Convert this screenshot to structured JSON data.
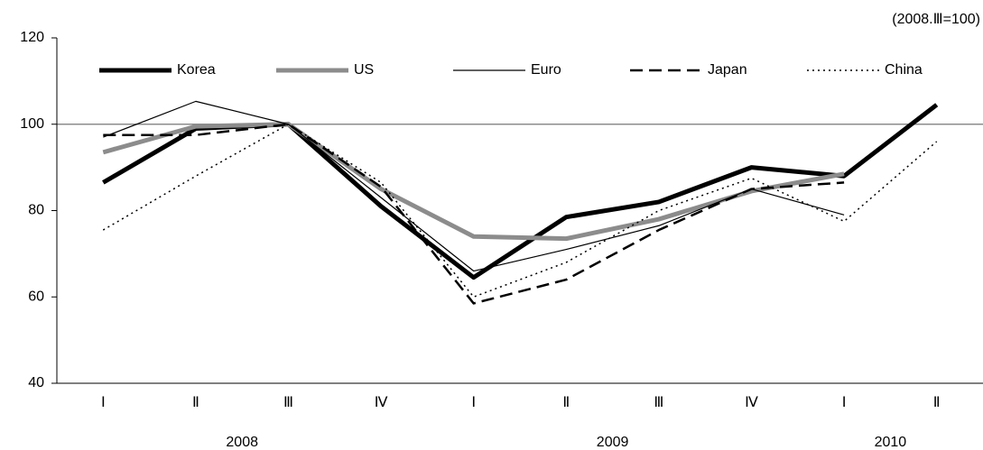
{
  "chart_data": {
    "type": "line",
    "annotation": "(2008.Ⅲ=100)",
    "categories": [
      "Ⅰ",
      "Ⅱ",
      "Ⅲ",
      "Ⅳ",
      "Ⅰ",
      "Ⅱ",
      "Ⅲ",
      "Ⅳ",
      "Ⅰ",
      "Ⅱ"
    ],
    "groups": [
      {
        "label": "2008",
        "count": 4
      },
      {
        "label": "2009",
        "count": 4
      },
      {
        "label": "2010",
        "count": 2
      }
    ],
    "ylim": [
      40,
      120
    ],
    "yticks": [
      40,
      60,
      80,
      100,
      120
    ],
    "reference_line": 100,
    "legend": "top",
    "series": [
      {
        "name": "Korea",
        "color": "#000000",
        "width": 5,
        "dash": "none",
        "values": [
          86.5,
          99,
          100,
          81,
          64.5,
          78.5,
          82,
          90,
          88,
          104.5
        ]
      },
      {
        "name": "US",
        "color": "#8c8c8c",
        "width": 5,
        "dash": "none",
        "values": [
          93.5,
          99.5,
          100,
          85,
          74,
          73.5,
          78,
          84.5,
          88.5,
          null
        ]
      },
      {
        "name": "Euro",
        "color": "#000000",
        "width": 1.2,
        "dash": "none",
        "values": [
          97,
          105.3,
          100,
          83,
          66,
          71,
          76.5,
          85,
          79,
          null
        ]
      },
      {
        "name": "Japan",
        "color": "#000000",
        "width": 2.5,
        "dash": "14,7",
        "values": [
          97.5,
          97.5,
          100,
          85.5,
          58.5,
          64,
          75.5,
          85,
          86.5,
          null
        ]
      },
      {
        "name": "China",
        "color": "#000000",
        "width": 1.5,
        "dash": "2,4",
        "values": [
          75.5,
          88,
          100,
          86.5,
          60,
          68,
          80,
          87.5,
          77.5,
          96
        ]
      }
    ]
  }
}
